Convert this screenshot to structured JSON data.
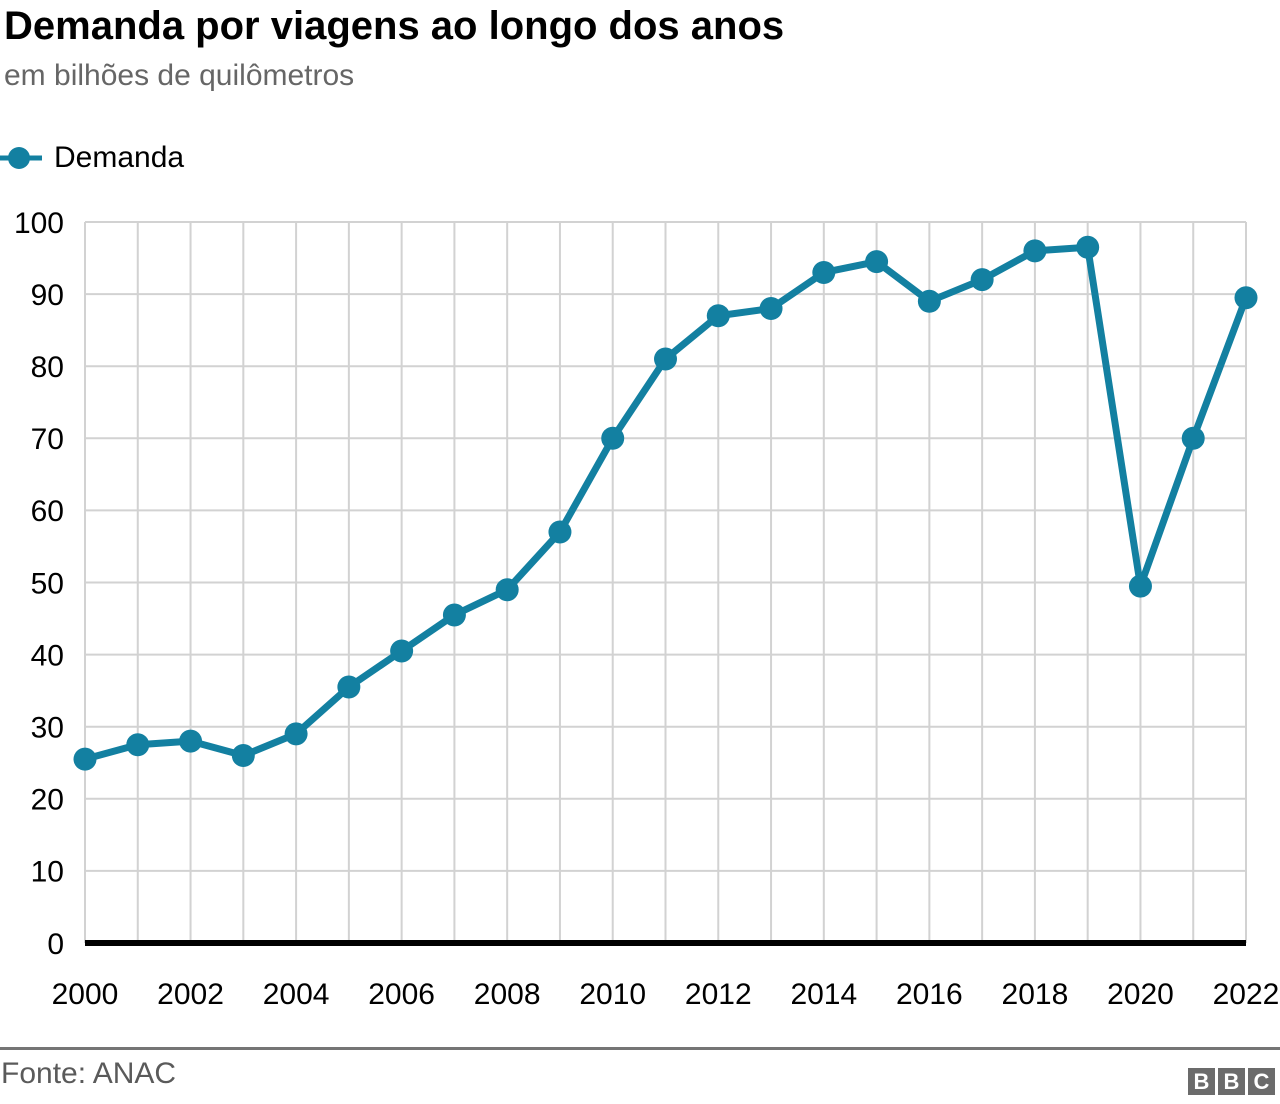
{
  "header": {
    "title": "Demanda por viagens ao longo dos anos",
    "subtitle": "em bilhões de quilômetros"
  },
  "legend": {
    "items": [
      {
        "label": "Demanda",
        "color": "#1380A1"
      }
    ]
  },
  "footer": {
    "source": "Fonte: ANAC",
    "logo_letters": [
      "B",
      "B",
      "C"
    ]
  },
  "colors": {
    "title": "#000000",
    "subtitle": "#666666",
    "line": "#1380A1",
    "grid": "#d2d2d2",
    "axis": "#000000",
    "tick": "#000000",
    "divider": "#757575",
    "source": "#5a5a5a",
    "logo_bg": "#6b6b6b"
  },
  "chart_data": {
    "type": "line",
    "title": "Demanda por viagens ao longo dos anos",
    "subtitle": "em bilhões de quilômetros",
    "xlabel": "",
    "ylabel": "em bilhões de quilômetros",
    "x": [
      2000,
      2001,
      2002,
      2003,
      2004,
      2005,
      2006,
      2007,
      2008,
      2009,
      2010,
      2011,
      2012,
      2013,
      2014,
      2015,
      2016,
      2017,
      2018,
      2019,
      2020,
      2021,
      2022
    ],
    "series": [
      {
        "name": "Demanda",
        "color": "#1380A1",
        "values": [
          25.5,
          27.5,
          28,
          26,
          29,
          35.5,
          40.5,
          45.5,
          49,
          57,
          70,
          81,
          87,
          88,
          93,
          94.5,
          89,
          92,
          96,
          96.5,
          49.5,
          70,
          89.5
        ]
      }
    ],
    "ylim": [
      0,
      100
    ],
    "ytick_step": 10,
    "xtick_step": 2,
    "grid": true,
    "legend_position": "top-left",
    "source": "Fonte: ANAC"
  }
}
